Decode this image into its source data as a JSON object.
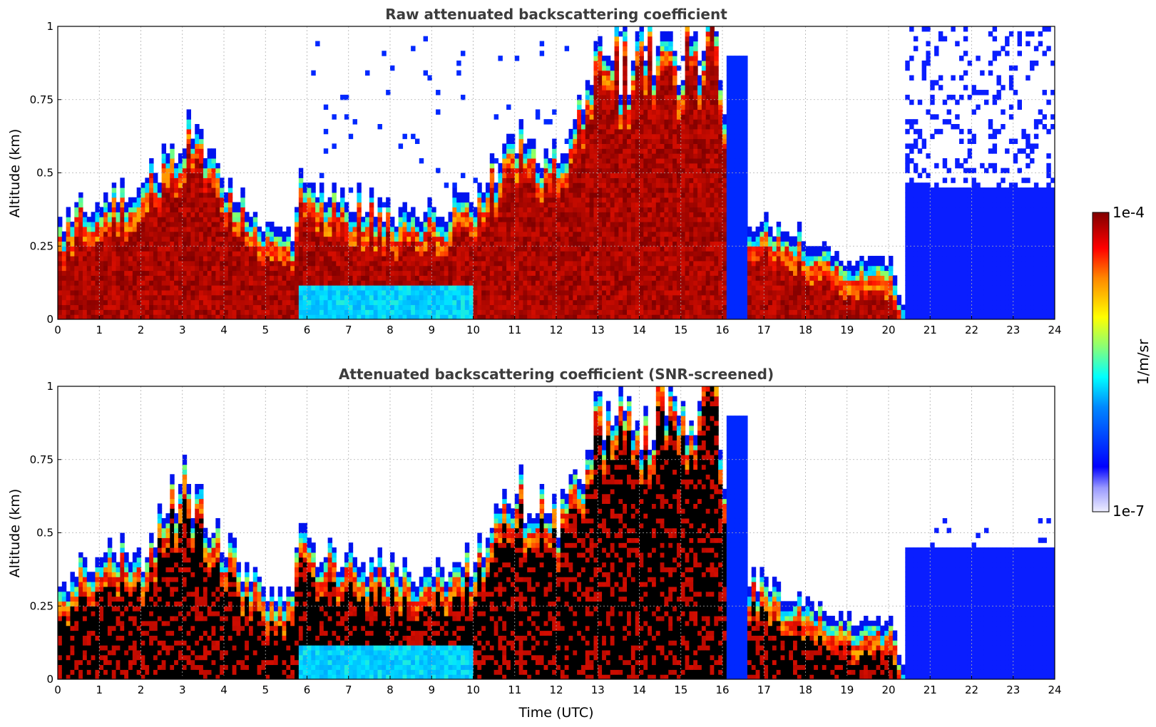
{
  "chart_data": [
    {
      "type": "heatmap",
      "title": "Raw attenuated backscattering coefficient",
      "xlabel": "",
      "ylabel": "Altitude (km)",
      "xlim": [
        0,
        24
      ],
      "ylim": [
        0,
        1
      ],
      "xticks": [
        "0",
        "1",
        "2",
        "3",
        "4",
        "5",
        "6",
        "7",
        "8",
        "9",
        "10",
        "11",
        "12",
        "13",
        "14",
        "15",
        "16",
        "17",
        "18",
        "19",
        "20",
        "21",
        "22",
        "23",
        "24"
      ],
      "yticks": [
        "0",
        "0.25",
        "0.5",
        "0.75",
        "1"
      ],
      "grid": true,
      "layer_top_km": [
        {
          "t": 0,
          "h": 0.33
        },
        {
          "t": 1,
          "h": 0.45
        },
        {
          "t": 2,
          "h": 0.42
        },
        {
          "t": 2.4,
          "h": 0.55
        },
        {
          "t": 3,
          "h": 0.68
        },
        {
          "t": 4,
          "h": 0.45
        },
        {
          "t": 5,
          "h": 0.3
        },
        {
          "t": 5.6,
          "h": 0.28
        },
        {
          "t": 5.8,
          "h": 0.56
        },
        {
          "t": 6,
          "h": 0.45
        },
        {
          "t": 7,
          "h": 0.42
        },
        {
          "t": 8,
          "h": 0.38
        },
        {
          "t": 9,
          "h": 0.36
        },
        {
          "t": 10,
          "h": 0.42
        },
        {
          "t": 11,
          "h": 0.65
        },
        {
          "t": 12,
          "h": 0.55
        },
        {
          "t": 13,
          "h": 0.9
        },
        {
          "t": 14,
          "h": 0.9
        },
        {
          "t": 15,
          "h": 0.95
        },
        {
          "t": 15.8,
          "h": 1.0
        },
        {
          "t": 16.2,
          "h": 0.35
        },
        {
          "t": 17,
          "h": 0.33
        },
        {
          "t": 18,
          "h": 0.28
        },
        {
          "t": 19,
          "h": 0.2
        },
        {
          "t": 20,
          "h": 0.2
        },
        {
          "t": 20.3,
          "h": 0.05
        }
      ]
    },
    {
      "type": "heatmap",
      "title": "Attenuated backscattering coefficient (SNR-screened)",
      "xlabel": "Time (UTC)",
      "ylabel": "Altitude (km)",
      "xlim": [
        0,
        24
      ],
      "ylim": [
        0,
        1
      ],
      "xticks": [
        "0",
        "1",
        "2",
        "3",
        "4",
        "5",
        "6",
        "7",
        "8",
        "9",
        "10",
        "11",
        "12",
        "13",
        "14",
        "15",
        "16",
        "17",
        "18",
        "19",
        "20",
        "21",
        "22",
        "23",
        "24"
      ],
      "yticks": [
        "0",
        "0.25",
        "0.5",
        "0.75",
        "1"
      ],
      "grid": true
    }
  ],
  "colorbar": {
    "label": "1/m/sr",
    "max_label": "1e-4",
    "min_label": "1e-7",
    "scale": "log",
    "colors": [
      "#eeeeff",
      "#0000ff",
      "#00aaff",
      "#00ffff",
      "#aaff55",
      "#ffff00",
      "#ff8800",
      "#ff0000",
      "#800000"
    ]
  }
}
